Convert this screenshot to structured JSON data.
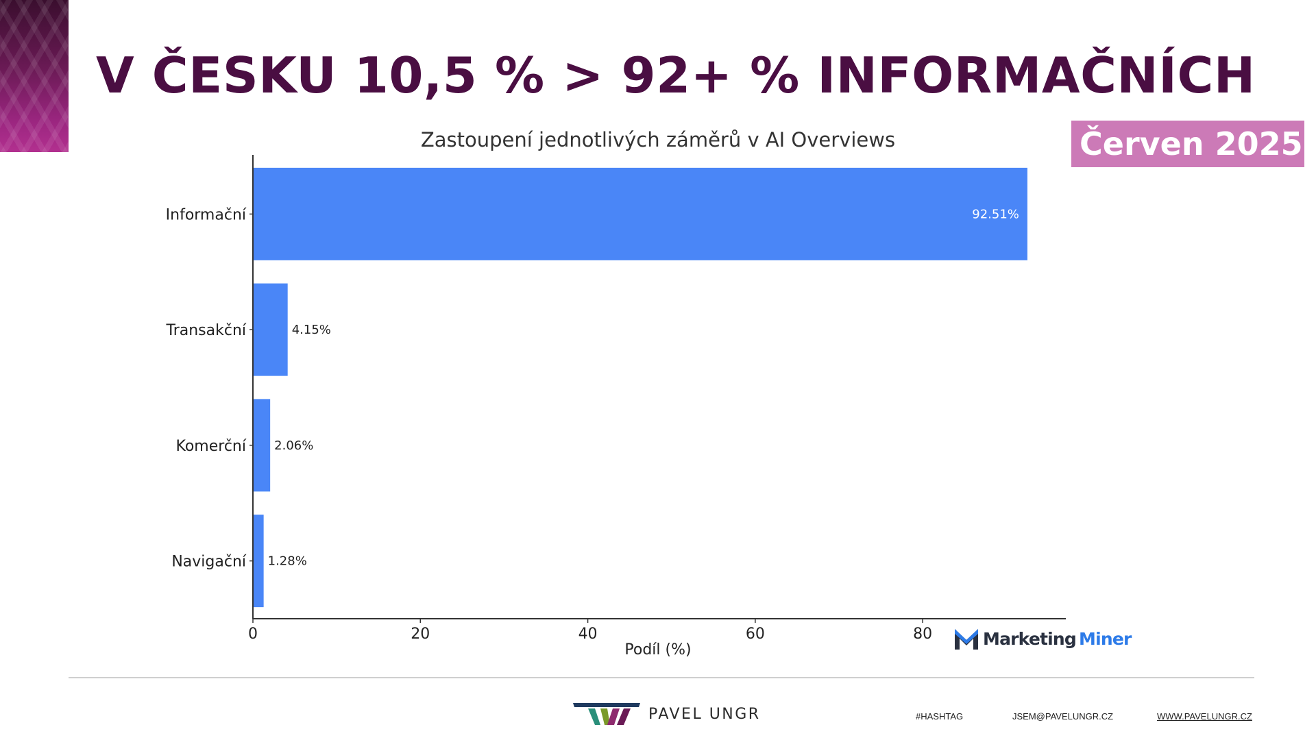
{
  "slide": {
    "title": "V ČESKU 10,5 % > 92+ % INFORMAČNÍCH",
    "badge": "Červen 2025"
  },
  "chart_data": {
    "type": "bar",
    "orientation": "horizontal",
    "title": "Zastoupení jednotlivých záměrů v AI Overviews",
    "xlabel": "Podíl (%)",
    "ylabel": "",
    "categories": [
      "Informační",
      "Transakční",
      "Komerční",
      "Navigační"
    ],
    "values": [
      92.51,
      4.15,
      2.06,
      1.28
    ],
    "data_labels": [
      "92.51%",
      "4.15%",
      "2.06%",
      "1.28%"
    ],
    "xticks": [
      0,
      20,
      40,
      60,
      80
    ],
    "xlim": [
      0,
      97.1
    ],
    "bar_color": "#4a86f7",
    "grid": false,
    "legend": "none"
  },
  "branding": {
    "mm_marketing": "Marketing",
    "mm_miner": "Miner",
    "author": "PAVEL UNGR",
    "hashtag": "#HASHTAG",
    "email": "JSEM@PAVELUNGR.CZ",
    "website": "WWW.PAVELUNGR.CZ"
  }
}
